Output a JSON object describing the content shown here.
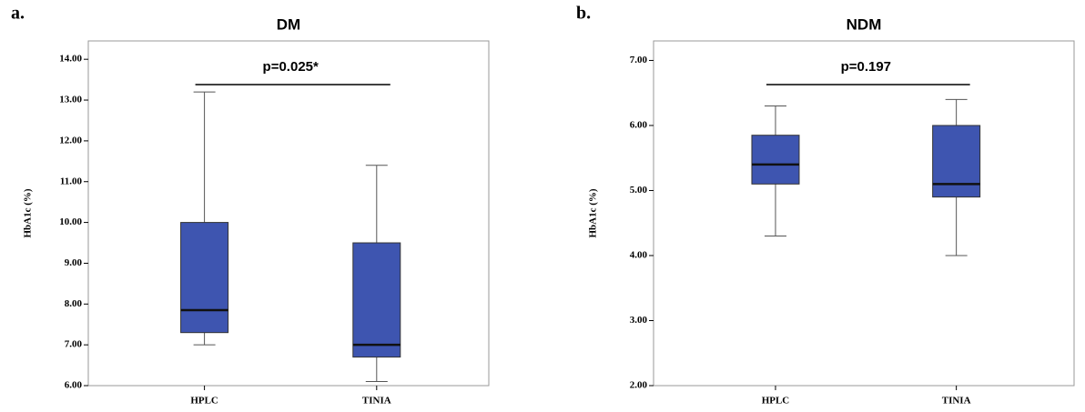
{
  "chart_data": [
    {
      "type": "box",
      "panel_label": "a.",
      "title": "DM",
      "y_label": "HbA1c (%)",
      "annotation": "p=0.025*",
      "categories": [
        "HPLC",
        "TINIA"
      ],
      "color": "#3e55b0",
      "boxes": [
        {
          "min": 7.0,
          "q1": 7.3,
          "median": 7.85,
          "q3": 10.0,
          "max": 13.2
        },
        {
          "min": 6.1,
          "q1": 6.7,
          "median": 7.0,
          "q3": 9.5,
          "max": 11.4
        }
      ],
      "ylim": [
        6,
        14.45
      ],
      "yticks": [
        {
          "value": 6,
          "label": "6.00"
        },
        {
          "value": 7,
          "label": "7.00"
        },
        {
          "value": 8,
          "label": "8.00"
        },
        {
          "value": 9,
          "label": "9.00"
        },
        {
          "value": 10,
          "label": "10.00"
        },
        {
          "value": 11,
          "label": "11.00"
        },
        {
          "value": 12,
          "label": "12.00"
        },
        {
          "value": 13,
          "label": "13.00"
        },
        {
          "value": 14,
          "label": "14.00"
        }
      ]
    },
    {
      "type": "box",
      "panel_label": "b.",
      "title": "NDM",
      "y_label": "HbA1c (%)",
      "annotation": "p=0.197",
      "categories": [
        "HPLC",
        "TINIA"
      ],
      "color": "#3e55b0",
      "boxes": [
        {
          "min": 4.3,
          "q1": 5.1,
          "median": 5.4,
          "q3": 5.85,
          "max": 6.3
        },
        {
          "min": 4.0,
          "q1": 4.9,
          "median": 5.1,
          "q3": 6.0,
          "max": 6.4
        }
      ],
      "ylim": [
        2,
        7.3
      ],
      "yticks": [
        {
          "value": 2,
          "label": "2.00"
        },
        {
          "value": 3,
          "label": "3.00"
        },
        {
          "value": 4,
          "label": "4.00"
        },
        {
          "value": 5,
          "label": "5.00"
        },
        {
          "value": 6,
          "label": "6.00"
        },
        {
          "value": 7,
          "label": "7.00"
        }
      ]
    }
  ]
}
